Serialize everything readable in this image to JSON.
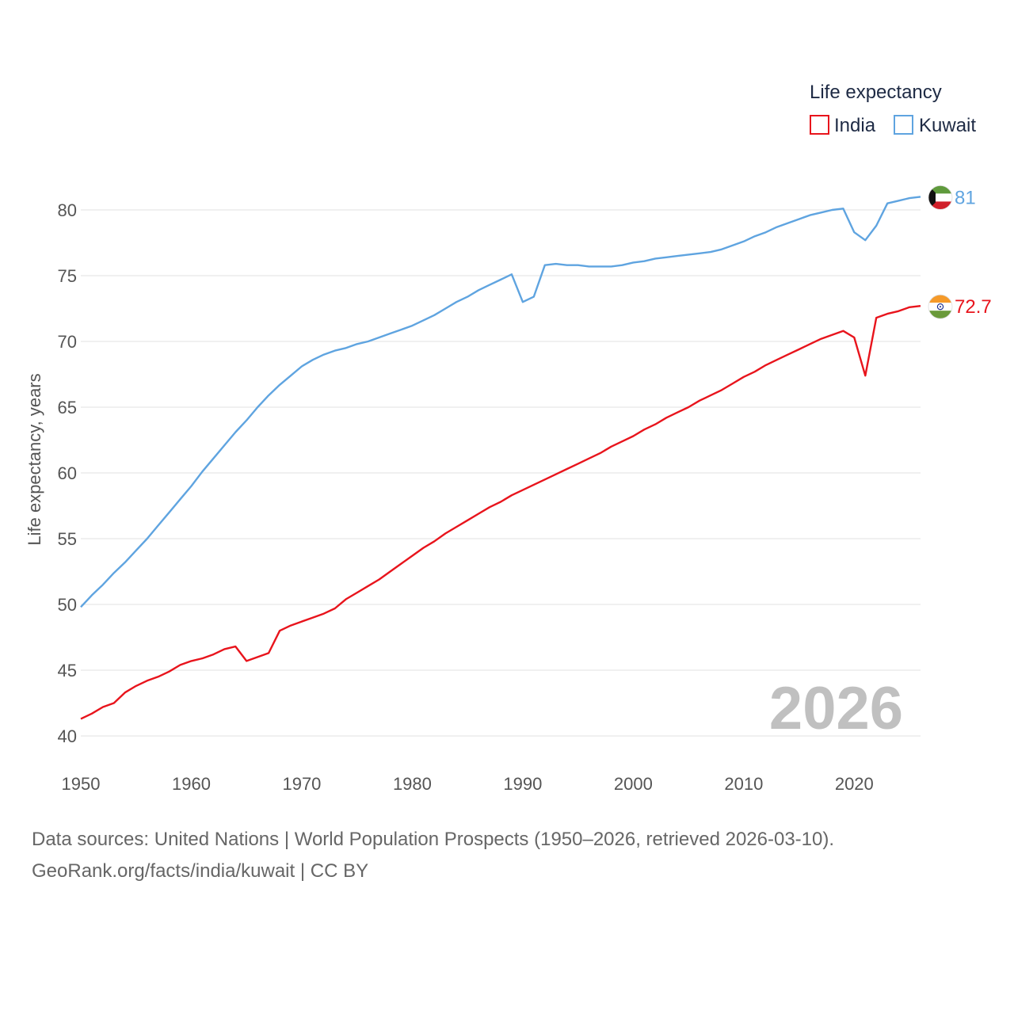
{
  "chart_data": {
    "type": "line",
    "ylabel": "Life expectancy, years",
    "xlabel": "",
    "xlim": [
      1950,
      2026
    ],
    "ylim": [
      40,
      83
    ],
    "x_ticks": [
      1950,
      1960,
      1970,
      1980,
      1990,
      2000,
      2010,
      2020
    ],
    "y_ticks": [
      40,
      45,
      50,
      55,
      60,
      65,
      70,
      75,
      80
    ],
    "grid": "horizontal",
    "legend": {
      "title": "Life expectancy",
      "position": "top-right"
    },
    "current_year": "2026",
    "x": [
      1950,
      1951,
      1952,
      1953,
      1954,
      1955,
      1956,
      1957,
      1958,
      1959,
      1960,
      1961,
      1962,
      1963,
      1964,
      1965,
      1966,
      1967,
      1968,
      1969,
      1970,
      1971,
      1972,
      1973,
      1974,
      1975,
      1976,
      1977,
      1978,
      1979,
      1980,
      1981,
      1982,
      1983,
      1984,
      1985,
      1986,
      1987,
      1988,
      1989,
      1990,
      1991,
      1992,
      1993,
      1994,
      1995,
      1996,
      1997,
      1998,
      1999,
      2000,
      2001,
      2002,
      2003,
      2004,
      2005,
      2006,
      2007,
      2008,
      2009,
      2010,
      2011,
      2012,
      2013,
      2014,
      2015,
      2016,
      2017,
      2018,
      2019,
      2020,
      2021,
      2022,
      2023,
      2024,
      2025,
      2026
    ],
    "series": [
      {
        "name": "India",
        "color": "#e8141c",
        "flag_icon": "india-flag-icon",
        "end_label": "72.7",
        "values": [
          41.3,
          41.7,
          42.2,
          42.5,
          43.3,
          43.8,
          44.2,
          44.5,
          44.9,
          45.4,
          45.7,
          45.9,
          46.2,
          46.6,
          46.8,
          45.7,
          46.0,
          46.3,
          48.0,
          48.4,
          48.7,
          49.0,
          49.3,
          49.7,
          50.4,
          50.9,
          51.4,
          51.9,
          52.5,
          53.1,
          53.7,
          54.3,
          54.8,
          55.4,
          55.9,
          56.4,
          56.9,
          57.4,
          57.8,
          58.3,
          58.7,
          59.1,
          59.5,
          59.9,
          60.3,
          60.7,
          61.1,
          61.5,
          62.0,
          62.4,
          62.8,
          63.3,
          63.7,
          64.2,
          64.6,
          65.0,
          65.5,
          65.9,
          66.3,
          66.8,
          67.3,
          67.7,
          68.2,
          68.6,
          69.0,
          69.4,
          69.8,
          70.2,
          70.5,
          70.8,
          70.3,
          67.4,
          71.8,
          72.1,
          72.3,
          72.6,
          72.7
        ]
      },
      {
        "name": "Kuwait",
        "color": "#5fa4e0",
        "flag_icon": "kuwait-flag-icon",
        "end_label": "81",
        "values": [
          49.8,
          50.7,
          51.5,
          52.4,
          53.2,
          54.1,
          55.0,
          56.0,
          57.0,
          58.0,
          59.0,
          60.1,
          61.1,
          62.1,
          63.1,
          64.0,
          65.0,
          65.9,
          66.7,
          67.4,
          68.1,
          68.6,
          69.0,
          69.3,
          69.5,
          69.8,
          70.0,
          70.3,
          70.6,
          70.9,
          71.2,
          71.6,
          72.0,
          72.5,
          73.0,
          73.4,
          73.9,
          74.3,
          74.7,
          75.1,
          73.0,
          73.4,
          75.8,
          75.9,
          75.8,
          75.8,
          75.7,
          75.7,
          75.7,
          75.8,
          76.0,
          76.1,
          76.3,
          76.4,
          76.5,
          76.6,
          76.7,
          76.8,
          77.0,
          77.3,
          77.6,
          78.0,
          78.3,
          78.7,
          79.0,
          79.3,
          79.6,
          79.8,
          80.0,
          80.1,
          78.3,
          77.7,
          78.8,
          80.5,
          80.7,
          80.9,
          81.0
        ]
      }
    ]
  },
  "footer": {
    "line1": "Data sources: United Nations | World Population Prospects (1950–2026, retrieved 2026-03-10).",
    "line2": "GeoRank.org/facts/india/kuwait | CC BY"
  }
}
